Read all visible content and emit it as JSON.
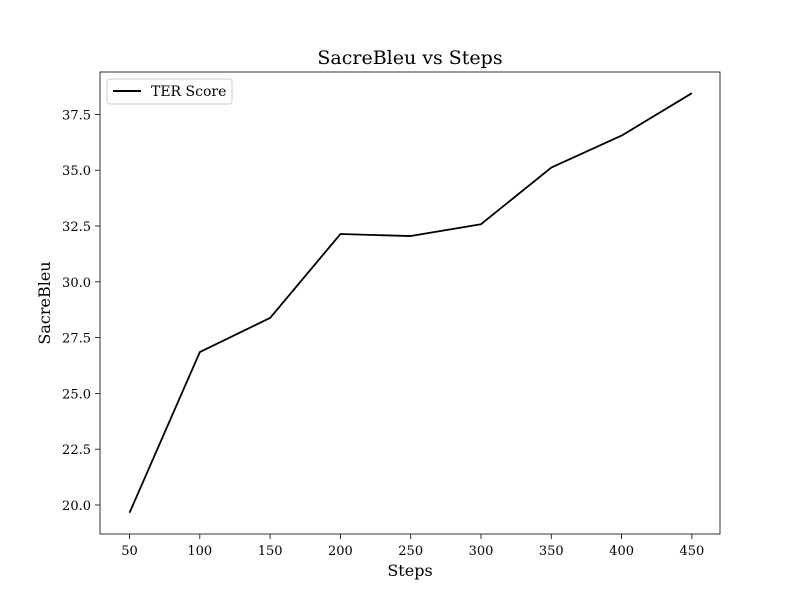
{
  "chart_data": {
    "type": "line",
    "title": "SacreBleu vs Steps",
    "xlabel": "Steps",
    "ylabel": "SacreBleu",
    "x": [
      50,
      100,
      150,
      200,
      250,
      300,
      350,
      400,
      450
    ],
    "series": [
      {
        "name": "TER Score",
        "values": [
          19.65,
          26.85,
          28.38,
          32.14,
          32.05,
          32.58,
          35.12,
          36.55,
          38.45
        ],
        "color": "#000000"
      }
    ],
    "xlim": [
      29,
      470
    ],
    "ylim": [
      18.7,
      39.4
    ],
    "xticks": [
      50,
      100,
      150,
      200,
      250,
      300,
      350,
      400,
      450
    ],
    "yticks": [
      20.0,
      22.5,
      25.0,
      27.5,
      30.0,
      32.5,
      35.0,
      37.5
    ],
    "ytick_labels": [
      "20.0",
      "22.5",
      "25.0",
      "27.5",
      "30.0",
      "32.5",
      "35.0",
      "37.5"
    ],
    "legend_position": "upper-left",
    "grid": false
  }
}
